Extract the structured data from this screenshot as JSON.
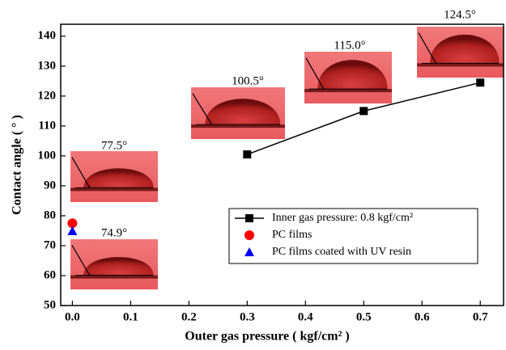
{
  "chart_data": {
    "type": "line",
    "x_label": "Outer gas pressure ( kgf/cm² )",
    "y_label": "Contact angle ( ° )",
    "xlim": [
      -0.02,
      0.74
    ],
    "ylim": [
      50,
      144
    ],
    "xticks": [
      {
        "value": 0,
        "label": "0.0"
      },
      0.1,
      0.2,
      0.3,
      0.4,
      0.5,
      0.6,
      0.7
    ],
    "yticks": [
      50,
      60,
      70,
      80,
      90,
      100,
      110,
      120,
      130,
      140
    ],
    "series": [
      {
        "name": "Inner gas pressure: 0.8 kgf/cm²",
        "color": "#000000",
        "marker": "square",
        "line": true,
        "x": [
          0.3,
          0.5,
          0.7
        ],
        "values": [
          100.5,
          115.0,
          124.5
        ]
      },
      {
        "name": "PC films",
        "color": "#ff0000",
        "marker": "circle",
        "line": false,
        "x": [
          0.0
        ],
        "values": [
          77.5
        ]
      },
      {
        "name": "PC films coated with UV resin",
        "color": "#0000ff",
        "marker": "triangle",
        "line": false,
        "x": [
          0.0
        ],
        "values": [
          74.9
        ]
      }
    ],
    "annotations": [
      "77.5°",
      "74.9°",
      "100.5°",
      "115.0°",
      "124.5°"
    ]
  }
}
